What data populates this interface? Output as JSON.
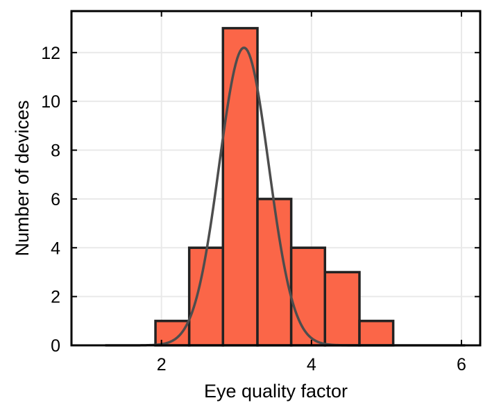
{
  "chart_data": {
    "type": "bar",
    "subtype": "histogram",
    "title": "",
    "xlabel": "Eye quality factor",
    "ylabel": "Number of devices",
    "xlim": [
      0.8,
      6.25
    ],
    "ylim": [
      0,
      13.7
    ],
    "xticks": [
      2,
      4,
      6
    ],
    "xtick_labels": [
      "2",
      "4",
      "6"
    ],
    "yticks": [
      0,
      2,
      4,
      6,
      8,
      10,
      12
    ],
    "ytick_labels": [
      "0",
      "2",
      "4",
      "6",
      "8",
      "10",
      "12"
    ],
    "grid": true,
    "bins": [
      {
        "x0": 1.92,
        "x1": 2.37,
        "count": 1
      },
      {
        "x0": 2.37,
        "x1": 2.82,
        "count": 4
      },
      {
        "x0": 2.82,
        "x1": 3.28,
        "count": 13
      },
      {
        "x0": 3.28,
        "x1": 3.73,
        "count": 6
      },
      {
        "x0": 3.73,
        "x1": 4.18,
        "count": 4
      },
      {
        "x0": 4.18,
        "x1": 4.64,
        "count": 3
      },
      {
        "x0": 4.64,
        "x1": 5.09,
        "count": 1
      }
    ],
    "fit_curve": {
      "type": "gaussian",
      "amplitude": 12.2,
      "mean": 3.1,
      "sigma": 0.33,
      "x_range": [
        1.25,
        6.05
      ]
    },
    "colors": {
      "bar_fill": "#fb6648",
      "bar_edge": "#222222",
      "curve": "#4d4d4d",
      "grid": "#e9e9e9",
      "axes": "#000000"
    }
  }
}
